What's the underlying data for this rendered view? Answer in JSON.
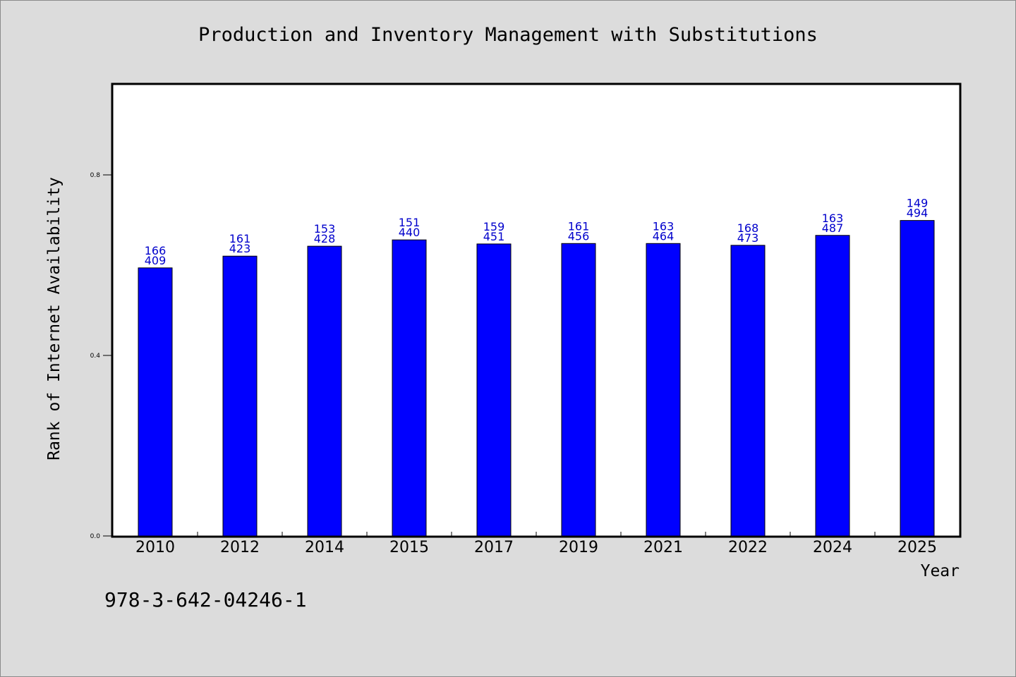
{
  "chart_data": {
    "type": "bar",
    "title": "Production and Inventory Management with Substitutions",
    "xlabel": "Year",
    "ylabel": "Rank of Internet Availability",
    "categories": [
      "2010",
      "2012",
      "2014",
      "2015",
      "2017",
      "2019",
      "2021",
      "2022",
      "2024",
      "2025"
    ],
    "values": [
      0.594,
      0.62,
      0.642,
      0.656,
      0.647,
      0.648,
      0.648,
      0.644,
      0.666,
      0.699
    ],
    "labels_top": [
      "166",
      "161",
      "153",
      "151",
      "159",
      "161",
      "163",
      "168",
      "163",
      "149"
    ],
    "labels_bottom": [
      "409",
      "423",
      "428",
      "440",
      "451",
      "456",
      "464",
      "473",
      "487",
      "494"
    ],
    "yticks": [
      "0.0",
      "0.4",
      "0.8"
    ],
    "ytick_values": [
      0.0,
      0.4,
      0.8
    ],
    "ylim": [
      0,
      1.0
    ],
    "bar_color": "#0000ff",
    "label_color": "#0000cc",
    "grid": false,
    "legend": "none"
  },
  "footer": {
    "isbn": "978-3-642-04246-1"
  }
}
